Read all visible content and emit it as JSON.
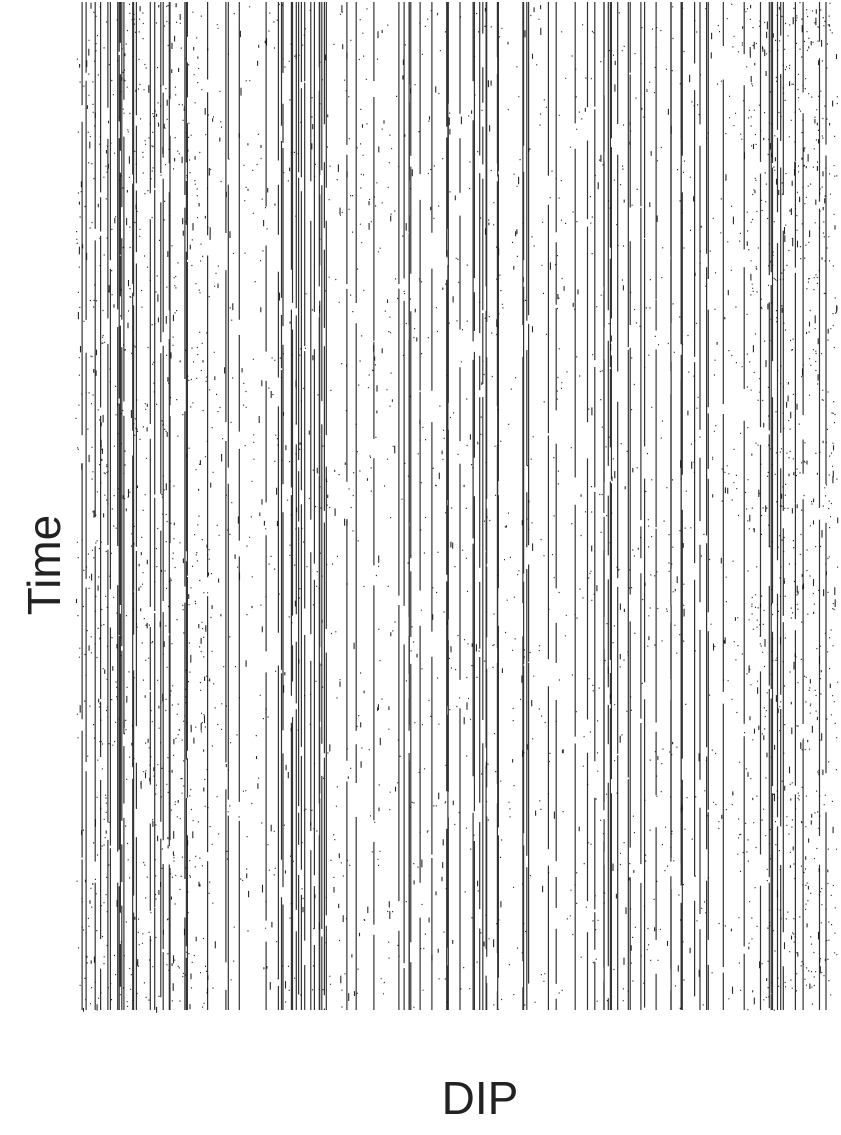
{
  "labels": {
    "y": "Time",
    "x": "DIP"
  }
}
